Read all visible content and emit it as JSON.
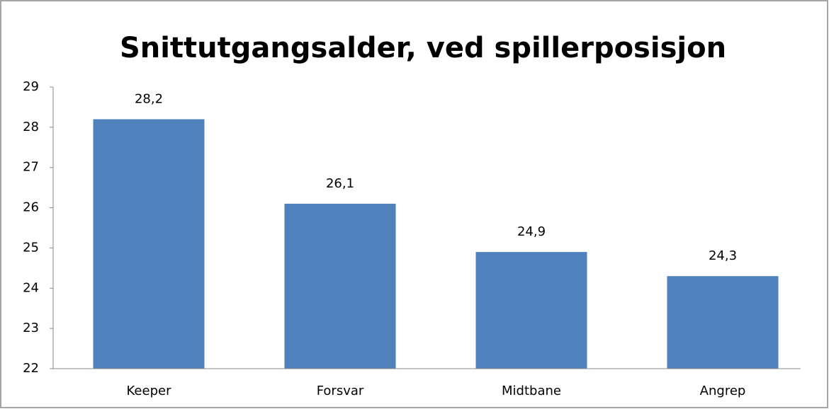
{
  "chart_data": {
    "type": "bar",
    "title": "Snittutgangsalder, ved spillerposisjon",
    "categories": [
      "Keeper",
      "Forsvar",
      "Midtbane",
      "Angrep"
    ],
    "values": [
      28.2,
      26.1,
      24.9,
      24.3
    ],
    "value_labels": [
      "28,2",
      "26,1",
      "24,9",
      "24,3"
    ],
    "color": "#4f81bd",
    "ylim": [
      22,
      29
    ],
    "yticks": [
      22,
      23,
      24,
      25,
      26,
      27,
      28,
      29
    ],
    "grid": false
  }
}
